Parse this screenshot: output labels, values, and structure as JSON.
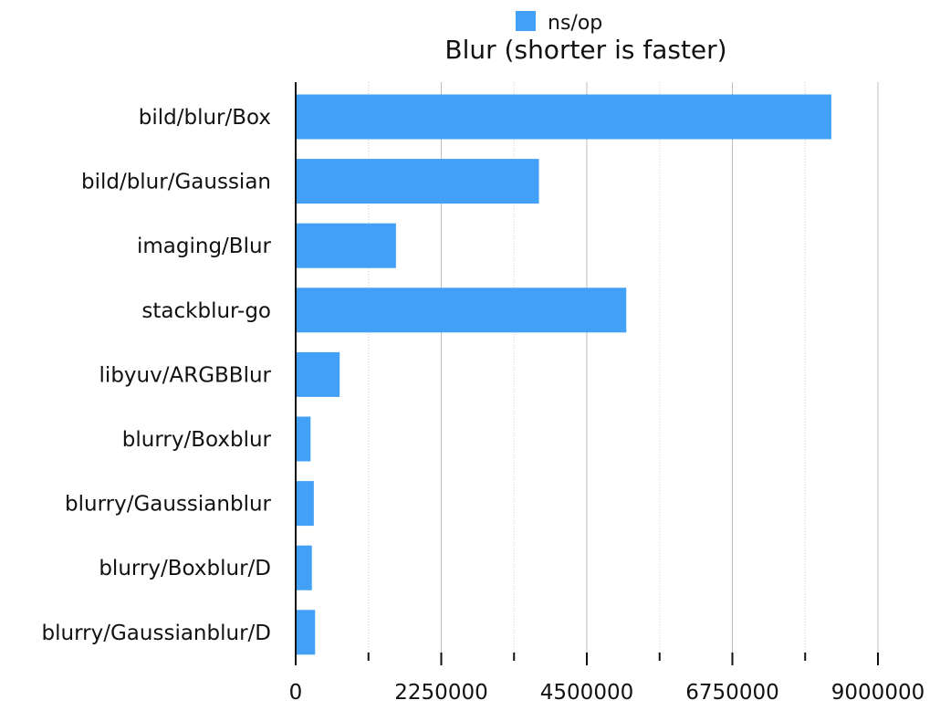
{
  "chart_data": {
    "type": "bar",
    "orientation": "horizontal",
    "title": "Blur (shorter is faster)",
    "legend": {
      "position": "top-center",
      "entries": [
        {
          "label": "ns/op",
          "color": "#42a0f6"
        }
      ]
    },
    "categories": [
      "bild/blur/Box",
      "bild/blur/Gaussian",
      "imaging/Blur",
      "stackblur-go",
      "libyuv/ARGBBlur",
      "blurry/Boxblur",
      "blurry/Gaussianblur",
      "blurry/Boxblur/D",
      "blurry/Gaussianblur/D"
    ],
    "series": [
      {
        "name": "ns/op",
        "color": "#42a0f6",
        "values": [
          8280000,
          3760000,
          1550000,
          5110000,
          680000,
          230000,
          280000,
          250000,
          300000
        ]
      }
    ],
    "xlim": [
      0,
      9000000
    ],
    "xticks": [
      "0",
      "2250000",
      "4500000",
      "6750000",
      "9000000"
    ],
    "xlabel": "",
    "ylabel": "",
    "grid": true
  }
}
